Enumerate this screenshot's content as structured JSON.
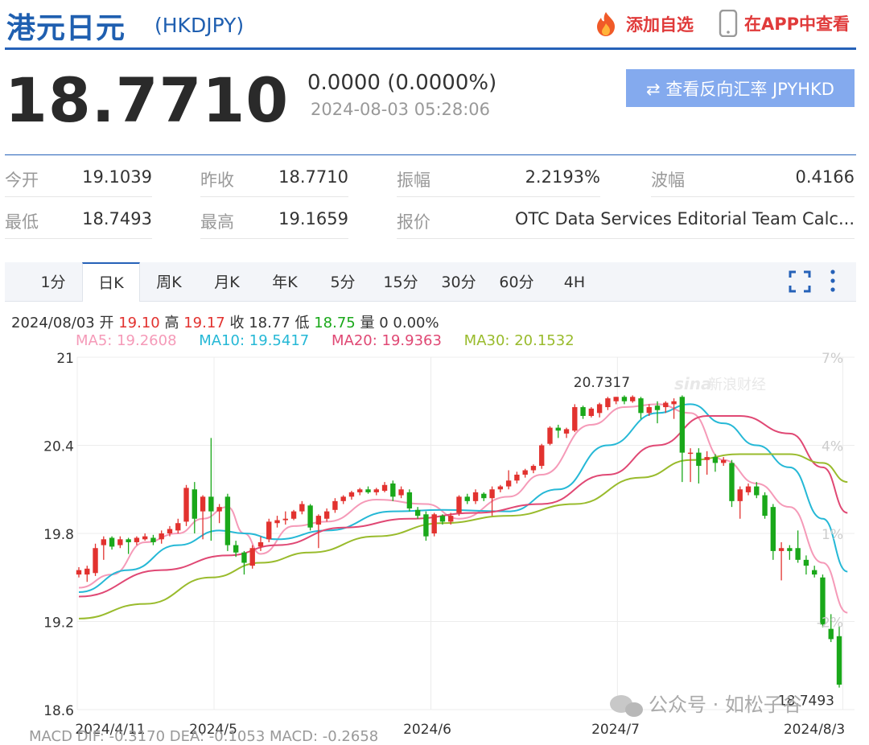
{
  "header": {
    "title": "港元日元",
    "code": "(HKDJPY)",
    "add_watchlist": "添加自选",
    "view_in_app": "在APP中查看"
  },
  "quote": {
    "price": "18.7710",
    "change": "0.0000 (0.0000%)",
    "time": "2024-08-03 05:28:06",
    "reverse_button": "⇄ 查看反向汇率 JPYHKD"
  },
  "stats": {
    "open_label": "今开",
    "open": "19.1039",
    "prev_close_label": "昨收",
    "prev_close": "18.7710",
    "amplitude_label": "振幅",
    "amplitude": "2.2193%",
    "range_label": "波幅",
    "range": "0.4166",
    "low_label": "最低",
    "low": "18.7493",
    "high_label": "最高",
    "high": "19.1659",
    "source_label": "报价",
    "source": "OTC Data Services Editorial Team Calc..."
  },
  "tabs": [
    "1分",
    "日K",
    "周K",
    "月K",
    "年K",
    "5分",
    "15分",
    "30分",
    "60分",
    "4H"
  ],
  "active_tab": "日K",
  "ohlc_bar": {
    "date": "2024/08/03",
    "open_label": "开",
    "open": "19.10",
    "high_label": "高",
    "high": "19.17",
    "close_label": "收",
    "close": "18.77",
    "low_label": "低",
    "low": "18.75",
    "volume_label": "量",
    "volume": "0 0.00%"
  },
  "ma_legend": {
    "ma5": "MA5: 19.2608",
    "ma10": "MA10: 19.5417",
    "ma20": "MA20: 19.9363",
    "ma30": "MA30: 20.1532"
  },
  "colors": {
    "up": "#e2322f",
    "down": "#1aa81a",
    "ma5": "#f59ab8",
    "ma10": "#25b8d6",
    "ma20": "#e04874",
    "ma30": "#99bb2c",
    "accent": "#2561b8",
    "button": "#84aaee"
  },
  "watermark": {
    "brand": "新浪财经",
    "account": "公众号 · 如松子谷"
  },
  "macd_row": "MACD  DIF: -0.3170   DEA: -0.1053   MACD: -0.2658",
  "chart_data": {
    "type": "candlestick",
    "y_ticks": [
      21,
      20.4,
      19.8,
      19.2,
      18.6
    ],
    "y_range": [
      18.6,
      21.0
    ],
    "pct_ticks": [
      "7%",
      "4%",
      "1%",
      "-2%"
    ],
    "x_labels": [
      "2024/4/11",
      "2024/5",
      "2024/6",
      "2024/7",
      "2024/8/3"
    ],
    "max_label": "20.7317",
    "min_label": "18.7493",
    "grid": true,
    "candles": [
      {
        "o": 19.52,
        "c": 19.55,
        "h": 19.57,
        "l": 19.5
      },
      {
        "o": 19.52,
        "c": 19.56,
        "h": 19.58,
        "l": 19.47
      },
      {
        "o": 19.53,
        "c": 19.7,
        "h": 19.73,
        "l": 19.51
      },
      {
        "o": 19.72,
        "c": 19.76,
        "h": 19.78,
        "l": 19.62
      },
      {
        "o": 19.77,
        "c": 19.71,
        "h": 19.78,
        "l": 19.69
      },
      {
        "o": 19.72,
        "c": 19.76,
        "h": 19.78,
        "l": 19.7
      },
      {
        "o": 19.76,
        "c": 19.74,
        "h": 19.77,
        "l": 19.66
      },
      {
        "o": 19.74,
        "c": 19.77,
        "h": 19.78,
        "l": 19.72
      },
      {
        "o": 19.76,
        "c": 19.78,
        "h": 19.8,
        "l": 19.75
      },
      {
        "o": 19.77,
        "c": 19.74,
        "h": 19.79,
        "l": 19.72
      },
      {
        "o": 19.76,
        "c": 19.8,
        "h": 19.82,
        "l": 19.73
      },
      {
        "o": 19.8,
        "c": 19.83,
        "h": 19.85,
        "l": 19.78
      },
      {
        "o": 19.82,
        "c": 19.87,
        "h": 19.9,
        "l": 19.8
      },
      {
        "o": 19.88,
        "c": 20.11,
        "h": 20.13,
        "l": 19.85
      },
      {
        "o": 20.1,
        "c": 19.9,
        "h": 20.15,
        "l": 19.8
      },
      {
        "o": 19.95,
        "c": 20.05,
        "h": 20.06,
        "l": 19.76
      },
      {
        "o": 20.05,
        "c": 19.95,
        "h": 20.45,
        "l": 19.75
      },
      {
        "o": 19.95,
        "c": 19.98,
        "h": 20.0,
        "l": 19.87
      },
      {
        "o": 20.05,
        "c": 19.72,
        "h": 20.07,
        "l": 19.68
      },
      {
        "o": 19.72,
        "c": 19.67,
        "h": 19.75,
        "l": 19.64
      },
      {
        "o": 19.67,
        "c": 19.6,
        "h": 19.68,
        "l": 19.52
      },
      {
        "o": 19.58,
        "c": 19.7,
        "h": 19.72,
        "l": 19.56
      },
      {
        "o": 19.71,
        "c": 19.74,
        "h": 19.78,
        "l": 19.68
      },
      {
        "o": 19.76,
        "c": 19.88,
        "h": 19.9,
        "l": 19.74
      },
      {
        "o": 19.87,
        "c": 19.89,
        "h": 19.92,
        "l": 19.84
      },
      {
        "o": 19.89,
        "c": 19.9,
        "h": 19.95,
        "l": 19.86
      },
      {
        "o": 19.9,
        "c": 19.95,
        "h": 19.96,
        "l": 19.89
      },
      {
        "o": 19.95,
        "c": 20.0,
        "h": 20.02,
        "l": 19.93
      },
      {
        "o": 19.99,
        "c": 19.84,
        "h": 20.0,
        "l": 19.82
      },
      {
        "o": 19.86,
        "c": 19.92,
        "h": 19.93,
        "l": 19.7
      },
      {
        "o": 19.9,
        "c": 19.95,
        "h": 19.97,
        "l": 19.88
      },
      {
        "o": 19.96,
        "c": 20.02,
        "h": 20.04,
        "l": 19.94
      },
      {
        "o": 20.02,
        "c": 20.05,
        "h": 20.06,
        "l": 20.0
      },
      {
        "o": 20.05,
        "c": 20.08,
        "h": 20.09,
        "l": 20.03
      },
      {
        "o": 20.08,
        "c": 20.1,
        "h": 20.11,
        "l": 20.06
      },
      {
        "o": 20.1,
        "c": 20.08,
        "h": 20.12,
        "l": 20.07
      },
      {
        "o": 20.08,
        "c": 20.1,
        "h": 20.11,
        "l": 20.06
      },
      {
        "o": 20.09,
        "c": 20.13,
        "h": 20.15,
        "l": 20.08
      },
      {
        "o": 20.14,
        "c": 20.05,
        "h": 20.16,
        "l": 20.02
      },
      {
        "o": 20.06,
        "c": 20.1,
        "h": 20.12,
        "l": 20.04
      },
      {
        "o": 20.08,
        "c": 19.97,
        "h": 20.1,
        "l": 19.95
      },
      {
        "o": 19.96,
        "c": 19.92,
        "h": 19.98,
        "l": 19.9
      },
      {
        "o": 19.93,
        "c": 19.78,
        "h": 19.95,
        "l": 19.75
      },
      {
        "o": 19.8,
        "c": 19.93,
        "h": 19.94,
        "l": 19.78
      },
      {
        "o": 19.92,
        "c": 19.88,
        "h": 19.93,
        "l": 19.86
      },
      {
        "o": 19.88,
        "c": 19.92,
        "h": 19.94,
        "l": 19.86
      },
      {
        "o": 19.94,
        "c": 20.05,
        "h": 20.06,
        "l": 19.92
      },
      {
        "o": 20.05,
        "c": 20.02,
        "h": 20.07,
        "l": 20.0
      },
      {
        "o": 20.02,
        "c": 20.08,
        "h": 20.1,
        "l": 20.0
      },
      {
        "o": 20.07,
        "c": 20.04,
        "h": 20.08,
        "l": 20.02
      },
      {
        "o": 20.04,
        "c": 20.1,
        "h": 20.12,
        "l": 19.92
      },
      {
        "o": 20.1,
        "c": 20.12,
        "h": 20.13,
        "l": 20.08
      },
      {
        "o": 20.12,
        "c": 20.16,
        "h": 20.23,
        "l": 20.1
      },
      {
        "o": 20.16,
        "c": 20.2,
        "h": 20.22,
        "l": 20.14
      },
      {
        "o": 20.2,
        "c": 20.23,
        "h": 20.24,
        "l": 20.18
      },
      {
        "o": 20.23,
        "c": 20.26,
        "h": 20.27,
        "l": 20.21
      },
      {
        "o": 20.26,
        "c": 20.4,
        "h": 20.41,
        "l": 20.24
      },
      {
        "o": 20.41,
        "c": 20.52,
        "h": 20.53,
        "l": 20.4
      },
      {
        "o": 20.52,
        "c": 20.5,
        "h": 20.54,
        "l": 20.45
      },
      {
        "o": 20.48,
        "c": 20.51,
        "h": 20.52,
        "l": 20.45
      },
      {
        "o": 20.5,
        "c": 20.66,
        "h": 20.68,
        "l": 20.49
      },
      {
        "o": 20.66,
        "c": 20.6,
        "h": 20.67,
        "l": 20.58
      },
      {
        "o": 20.6,
        "c": 20.65,
        "h": 20.66,
        "l": 20.59
      },
      {
        "o": 20.62,
        "c": 20.68,
        "h": 20.69,
        "l": 20.59
      },
      {
        "o": 20.66,
        "c": 20.72,
        "h": 20.73,
        "l": 20.64
      },
      {
        "o": 20.7,
        "c": 20.73,
        "h": 20.73,
        "l": 20.68
      },
      {
        "o": 20.73,
        "c": 20.7,
        "h": 20.74,
        "l": 20.68
      },
      {
        "o": 20.7,
        "c": 20.73,
        "h": 20.74,
        "l": 20.69
      },
      {
        "o": 20.72,
        "c": 20.62,
        "h": 20.73,
        "l": 20.58
      },
      {
        "o": 20.62,
        "c": 20.66,
        "h": 20.68,
        "l": 20.6
      },
      {
        "o": 20.67,
        "c": 20.64,
        "h": 20.7,
        "l": 20.55
      },
      {
        "o": 20.66,
        "c": 20.69,
        "h": 20.7,
        "l": 20.62
      },
      {
        "o": 20.68,
        "c": 20.7,
        "h": 20.72,
        "l": 20.58
      },
      {
        "o": 20.73,
        "c": 20.35,
        "h": 20.74,
        "l": 20.15
      },
      {
        "o": 20.35,
        "c": 20.35,
        "h": 20.38,
        "l": 20.15
      },
      {
        "o": 20.35,
        "c": 20.26,
        "h": 20.38,
        "l": 20.14
      },
      {
        "o": 20.3,
        "c": 20.32,
        "h": 20.36,
        "l": 20.2
      },
      {
        "o": 20.32,
        "c": 20.28,
        "h": 20.34,
        "l": 20.22
      },
      {
        "o": 20.28,
        "c": 20.3,
        "h": 20.32,
        "l": 20.26
      },
      {
        "o": 20.28,
        "c": 20.02,
        "h": 20.3,
        "l": 19.98
      },
      {
        "o": 20.02,
        "c": 20.1,
        "h": 20.12,
        "l": 19.9
      },
      {
        "o": 20.08,
        "c": 20.12,
        "h": 20.14,
        "l": 20.06
      },
      {
        "o": 20.12,
        "c": 20.06,
        "h": 20.15,
        "l": 20.04
      },
      {
        "o": 20.06,
        "c": 19.92,
        "h": 20.08,
        "l": 19.9
      },
      {
        "o": 19.98,
        "c": 19.68,
        "h": 20.0,
        "l": 19.62
      },
      {
        "o": 19.68,
        "c": 19.7,
        "h": 19.74,
        "l": 19.48
      },
      {
        "o": 19.7,
        "c": 19.68,
        "h": 19.72,
        "l": 19.62
      },
      {
        "o": 19.7,
        "c": 19.62,
        "h": 19.82,
        "l": 19.6
      },
      {
        "o": 19.62,
        "c": 19.58,
        "h": 19.65,
        "l": 19.52
      },
      {
        "o": 19.55,
        "c": 19.52,
        "h": 19.58,
        "l": 19.5
      },
      {
        "o": 19.5,
        "c": 19.18,
        "h": 19.52,
        "l": 19.16
      },
      {
        "o": 19.15,
        "c": 19.08,
        "h": 19.25,
        "l": 19.06
      },
      {
        "o": 19.1,
        "c": 18.77,
        "h": 19.17,
        "l": 18.75
      }
    ],
    "ma_series": [
      {
        "name": "MA5",
        "anchors": [
          [
            0,
            19.43
          ],
          [
            4,
            19.52
          ],
          [
            8,
            19.74
          ],
          [
            12,
            19.8
          ],
          [
            15,
            19.9
          ],
          [
            18,
            19.98
          ],
          [
            20,
            19.8
          ],
          [
            22,
            19.66
          ],
          [
            26,
            19.85
          ],
          [
            30,
            19.88
          ],
          [
            36,
            20.03
          ],
          [
            42,
            20.0
          ],
          [
            46,
            19.9
          ],
          [
            52,
            20.05
          ],
          [
            56,
            20.2
          ],
          [
            62,
            20.54
          ],
          [
            66,
            20.66
          ],
          [
            70,
            20.68
          ],
          [
            74,
            20.62
          ],
          [
            78,
            20.3
          ],
          [
            82,
            20.14
          ],
          [
            86,
            19.98
          ],
          [
            90,
            19.6
          ],
          [
            93,
            19.26
          ]
        ]
      },
      {
        "name": "MA10",
        "anchors": [
          [
            0,
            19.4
          ],
          [
            6,
            19.55
          ],
          [
            12,
            19.72
          ],
          [
            17,
            19.82
          ],
          [
            20,
            19.8
          ],
          [
            24,
            19.76
          ],
          [
            30,
            19.82
          ],
          [
            38,
            19.95
          ],
          [
            44,
            19.96
          ],
          [
            52,
            19.95
          ],
          [
            58,
            20.1
          ],
          [
            64,
            20.4
          ],
          [
            70,
            20.62
          ],
          [
            74,
            20.68
          ],
          [
            78,
            20.55
          ],
          [
            82,
            20.4
          ],
          [
            86,
            20.25
          ],
          [
            90,
            19.9
          ],
          [
            93,
            19.54
          ]
        ]
      },
      {
        "name": "MA20",
        "anchors": [
          [
            0,
            19.37
          ],
          [
            10,
            19.55
          ],
          [
            18,
            19.65
          ],
          [
            24,
            19.72
          ],
          [
            32,
            19.84
          ],
          [
            40,
            19.9
          ],
          [
            48,
            19.94
          ],
          [
            56,
            20.0
          ],
          [
            64,
            20.2
          ],
          [
            70,
            20.4
          ],
          [
            76,
            20.6
          ],
          [
            80,
            20.6
          ],
          [
            86,
            20.48
          ],
          [
            90,
            20.25
          ],
          [
            93,
            19.94
          ]
        ]
      },
      {
        "name": "MA30",
        "anchors": [
          [
            0,
            19.22
          ],
          [
            8,
            19.32
          ],
          [
            16,
            19.5
          ],
          [
            22,
            19.6
          ],
          [
            28,
            19.67
          ],
          [
            36,
            19.78
          ],
          [
            44,
            19.87
          ],
          [
            52,
            19.92
          ],
          [
            60,
            20.0
          ],
          [
            68,
            20.18
          ],
          [
            74,
            20.3
          ],
          [
            80,
            20.34
          ],
          [
            86,
            20.34
          ],
          [
            90,
            20.28
          ],
          [
            93,
            20.15
          ]
        ]
      }
    ]
  }
}
